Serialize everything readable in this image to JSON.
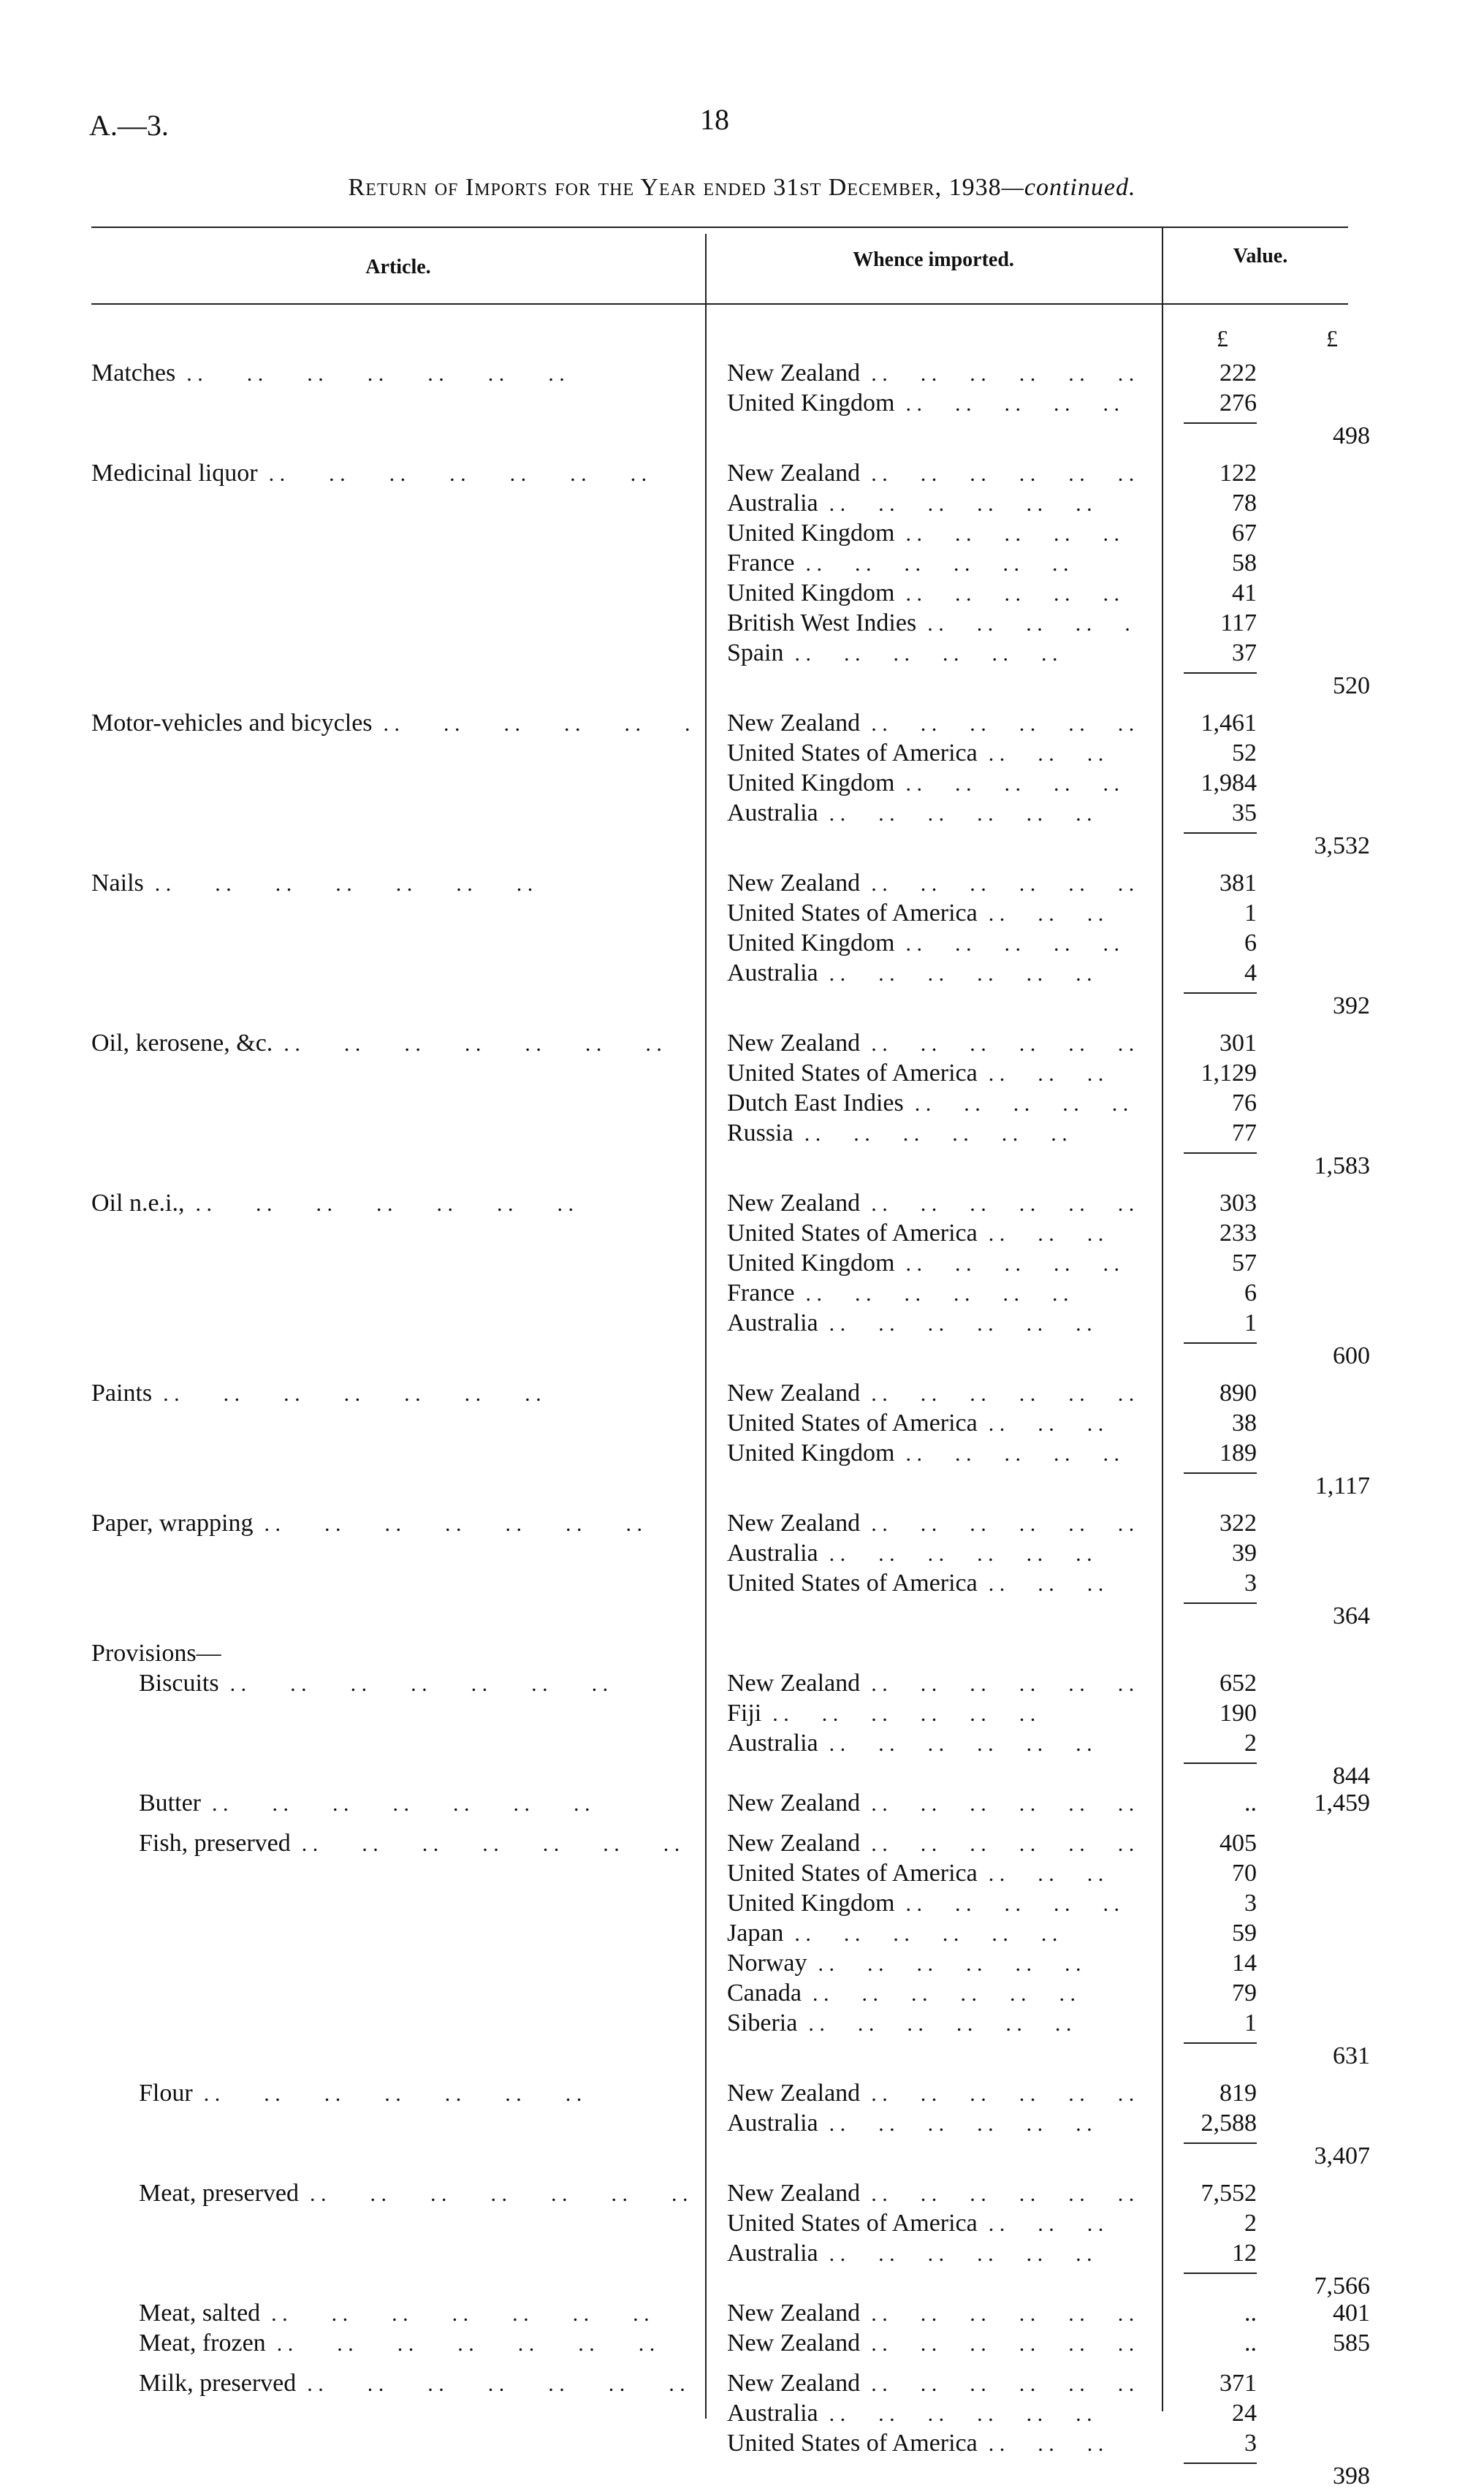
{
  "header": {
    "reference": "A.—3.",
    "page_number": "18",
    "title": "Return of Imports for the Year ended 31st December, 1938",
    "title_suffix": "—continued."
  },
  "columns": {
    "article": "Article.",
    "whence": "Whence imported.",
    "value": "Value.",
    "unit_left": "£",
    "unit_right": "£"
  },
  "groups": [
    {
      "article": "Matches",
      "lines": [
        [
          "New Zealand",
          "222"
        ],
        [
          "United Kingdom",
          "276"
        ]
      ],
      "total": "498"
    },
    {
      "article": "Medicinal liquor",
      "lines": [
        [
          "New Zealand",
          "122"
        ],
        [
          "Australia",
          "78"
        ],
        [
          "United Kingdom",
          "67"
        ],
        [
          "France",
          "58"
        ],
        [
          "United Kingdom",
          "41"
        ],
        [
          "British West Indies",
          "117"
        ],
        [
          "Spain",
          "37"
        ]
      ],
      "total": "520"
    },
    {
      "article": "Motor-vehicles and bicycles",
      "lines": [
        [
          "New Zealand",
          "1,461"
        ],
        [
          "United States of America",
          "52"
        ],
        [
          "United Kingdom",
          "1,984"
        ],
        [
          "Australia",
          "35"
        ]
      ],
      "total": "3,532"
    },
    {
      "article": "Nails",
      "lines": [
        [
          "New Zealand",
          "381"
        ],
        [
          "United States of America",
          "1"
        ],
        [
          "United Kingdom",
          "6"
        ],
        [
          "Australia",
          "4"
        ]
      ],
      "total": "392"
    },
    {
      "article": "Oil, kerosene, &c.",
      "lines": [
        [
          "New Zealand",
          "301"
        ],
        [
          "United States of America",
          "1,129"
        ],
        [
          "Dutch East Indies",
          "76"
        ],
        [
          "Russia",
          "77"
        ]
      ],
      "total": "1,583"
    },
    {
      "article": "Oil n.e.i.,",
      "lines": [
        [
          "New Zealand",
          "303"
        ],
        [
          "United States of America",
          "233"
        ],
        [
          "United Kingdom",
          "57"
        ],
        [
          "France",
          "6"
        ],
        [
          "Australia",
          "1"
        ]
      ],
      "total": "600"
    },
    {
      "article": "Paints",
      "lines": [
        [
          "New Zealand",
          "890"
        ],
        [
          "United States of America",
          "38"
        ],
        [
          "United Kingdom",
          "189"
        ]
      ],
      "total": "1,117"
    },
    {
      "article": "Paper, wrapping",
      "lines": [
        [
          "New Zealand",
          "322"
        ],
        [
          "Australia",
          "39"
        ],
        [
          "United States of America",
          "3"
        ]
      ],
      "total": "364"
    },
    {
      "heading": "Provisions—",
      "article": "Biscuits",
      "indent": true,
      "lines": [
        [
          "New Zealand",
          "652"
        ],
        [
          "Fiji",
          "190"
        ],
        [
          "Australia",
          "2"
        ]
      ],
      "total": "844"
    },
    {
      "article": "Butter",
      "indent": true,
      "inline": true,
      "lines": [
        [
          "New Zealand",
          "..",
          "1,459"
        ]
      ]
    },
    {
      "article": "Fish, preserved",
      "indent": true,
      "lines": [
        [
          "New Zealand",
          "405"
        ],
        [
          "United States of America",
          "70"
        ],
        [
          "United Kingdom",
          "3"
        ],
        [
          "Japan",
          "59"
        ],
        [
          "Norway",
          "14"
        ],
        [
          "Canada",
          "79"
        ],
        [
          "Siberia",
          "1"
        ]
      ],
      "total": "631"
    },
    {
      "article": "Flour",
      "indent": true,
      "lines": [
        [
          "New Zealand",
          "819"
        ],
        [
          "Australia",
          "2,588"
        ]
      ],
      "total": "3,407"
    },
    {
      "article": "Meat, preserved",
      "indent": true,
      "lines": [
        [
          "New Zealand",
          "7,552"
        ],
        [
          "United States of America",
          "2"
        ],
        [
          "Australia",
          "12"
        ]
      ],
      "total": "7,566"
    },
    {
      "article": "Meat, salted",
      "indent": true,
      "inline": true,
      "lines": [
        [
          "New Zealand",
          "..",
          "401"
        ]
      ]
    },
    {
      "article": "Meat, frozen",
      "indent": true,
      "inline": true,
      "lines": [
        [
          "New Zealand",
          "..",
          "585"
        ]
      ]
    },
    {
      "article": "Milk, preserved",
      "indent": true,
      "lines": [
        [
          "New Zealand",
          "371"
        ],
        [
          "Australia",
          "24"
        ],
        [
          "United States of America",
          "3"
        ]
      ],
      "total": "398"
    }
  ]
}
